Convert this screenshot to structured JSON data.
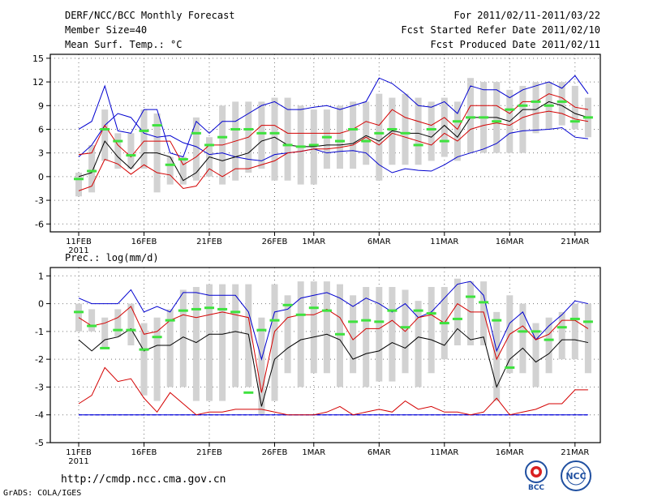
{
  "header": {
    "title": "DERF/NCC/BCC Monthly Forecast",
    "member_size": "Member Size=40",
    "variable": "Mean Surf. Temp.: °C",
    "forecast_period": "For 2011/02/11-2011/03/22",
    "refer_date": "Fcst Started Refer Date 2011/02/10",
    "produced_date": "Fcst Produced Date 2011/02/11"
  },
  "footer": {
    "url": "http://cmdp.ncc.cma.gov.cn",
    "credit": "GrADS: COLA/IGES",
    "logo_bcc": "BCC",
    "logo_ncc": "NCC"
  },
  "colors": {
    "box": "#d2d2d2",
    "median": "#3ee23e",
    "mean": "#000000",
    "sd": "#d40000",
    "minmax": "#0000d0",
    "floor": "#2222ff"
  },
  "chart_data": [
    {
      "type": "box",
      "title": "Mean Surf. Temp.: °C",
      "xlabel": "",
      "ylabel": "°C",
      "ylim": [
        -7,
        15.5
      ],
      "yticks": [
        15,
        12,
        9,
        6,
        3,
        0,
        -3,
        -6
      ],
      "x_start_label_year": "2011",
      "xticks": [
        {
          "day": 0,
          "label": "11FEB"
        },
        {
          "day": 5,
          "label": "16FEB"
        },
        {
          "day": 10,
          "label": "21FEB"
        },
        {
          "day": 15,
          "label": "26FEB"
        },
        {
          "day": 18,
          "label": "1MAR"
        },
        {
          "day": 23,
          "label": "6MAR"
        },
        {
          "day": 28,
          "label": "11MAR"
        },
        {
          "day": 33,
          "label": "16MAR"
        },
        {
          "day": 38,
          "label": "21MAR"
        }
      ],
      "grid": true,
      "series": [
        {
          "name": "max",
          "values": [
            2.5,
            4.0,
            6.5,
            8.0,
            7.5,
            5.5,
            5.0,
            5.2,
            4.3,
            3.8,
            2.8,
            3.0,
            2.5,
            2.2,
            2.0,
            2.8,
            3.0,
            3.2,
            3.5,
            3.0,
            3.2,
            3.3,
            3.0,
            1.5,
            0.5,
            1.0,
            0.8,
            0.7,
            1.5,
            2.5,
            3.0,
            3.5,
            4.2,
            5.5,
            5.8,
            5.9,
            6.0,
            6.2,
            5.0,
            4.8
          ]
        },
        {
          "name": "minus_sd",
          "values": [
            -1.8,
            -1.2,
            2.2,
            1.6,
            0.3,
            1.5,
            0.5,
            0.2,
            -1.5,
            -1.2,
            1.0,
            0.0,
            1.0,
            1.0,
            1.5,
            2.0,
            3.0,
            3.2,
            3.5,
            3.5,
            3.7,
            4.0,
            5.0,
            4.0,
            5.5,
            5.0,
            4.5,
            4.0,
            5.5,
            4.5,
            6.0,
            6.5,
            6.8,
            6.5,
            7.5,
            8.0,
            8.3,
            8.0,
            7.3,
            7.0
          ]
        },
        {
          "name": "mean",
          "values": [
            0.0,
            0.5,
            4.5,
            2.5,
            1.0,
            3.0,
            3.0,
            2.5,
            -0.5,
            0.5,
            2.5,
            2.0,
            2.5,
            3.0,
            4.5,
            5.0,
            4.0,
            3.8,
            3.8,
            4.0,
            4.0,
            4.2,
            5.2,
            4.5,
            5.8,
            5.5,
            5.5,
            5.0,
            6.5,
            5.0,
            7.5,
            7.5,
            7.5,
            7.0,
            8.5,
            8.5,
            9.5,
            9.0,
            8.0,
            7.5
          ]
        },
        {
          "name": "plus_sd",
          "values": [
            2.8,
            3.0,
            6.5,
            4.0,
            2.5,
            4.5,
            4.5,
            4.5,
            1.5,
            2.5,
            4.0,
            4.0,
            4.5,
            5.0,
            6.5,
            6.5,
            5.5,
            5.5,
            5.5,
            5.5,
            5.5,
            6.0,
            7.0,
            6.5,
            8.5,
            7.5,
            7.0,
            6.5,
            7.5,
            6.0,
            9.0,
            9.0,
            9.0,
            8.0,
            9.5,
            9.5,
            10.5,
            10.0,
            8.8,
            8.5
          ]
        },
        {
          "name": "min",
          "values": [
            6.0,
            7.0,
            11.5,
            5.8,
            5.5,
            8.5,
            8.5,
            3.0,
            2.5,
            7.0,
            5.5,
            7.0,
            7.0,
            8.0,
            9.0,
            9.5,
            8.5,
            8.5,
            8.8,
            9.0,
            8.5,
            9.0,
            9.5,
            12.5,
            11.8,
            10.5,
            9.0,
            8.8,
            9.5,
            8.0,
            11.5,
            11.0,
            11.0,
            10.0,
            11.0,
            11.5,
            12.0,
            11.2,
            12.8,
            10.5
          ]
        },
        {
          "name": "box_low",
          "values": [
            -2.5,
            -2.0,
            2.0,
            1.0,
            1.0,
            1.0,
            -2.0,
            -1.0,
            -1.0,
            -0.5,
            0.0,
            -1.0,
            -0.5,
            0.5,
            1.0,
            -0.5,
            -0.5,
            -1.0,
            -1.0,
            1.0,
            1.0,
            1.0,
            1.5,
            -0.5,
            1.5,
            1.5,
            1.5,
            2.0,
            2.5,
            2.0,
            3.0,
            3.0,
            3.0,
            3.0,
            3.0,
            5.5,
            6.0,
            6.5,
            6.0,
            5.0
          ]
        },
        {
          "name": "box_high",
          "values": [
            0.5,
            4.0,
            8.5,
            5.5,
            5.5,
            8.5,
            8.0,
            2.5,
            2.5,
            7.5,
            5.0,
            9.0,
            9.5,
            9.5,
            9.5,
            10.0,
            10.0,
            9.0,
            8.5,
            8.5,
            9.0,
            9.5,
            9.5,
            10.5,
            10.0,
            10.5,
            10.0,
            9.5,
            10.0,
            9.5,
            12.5,
            12.0,
            12.0,
            11.0,
            11.5,
            12.0,
            12.0,
            12.0,
            11.5,
            10.0
          ]
        },
        {
          "name": "median",
          "values": [
            -0.3,
            0.7,
            6.0,
            4.5,
            2.7,
            5.8,
            6.5,
            1.5,
            2.2,
            5.5,
            4.0,
            5.0,
            6.0,
            6.0,
            5.5,
            5.5,
            4.0,
            3.8,
            4.0,
            5.0,
            4.5,
            6.0,
            4.5,
            5.5,
            6.0,
            5.5,
            4.0,
            6.0,
            4.5,
            7.0,
            7.5,
            7.5,
            7.0,
            8.5,
            9.0,
            9.5,
            9.0,
            9.5,
            7.0,
            7.5
          ]
        }
      ]
    },
    {
      "type": "box",
      "title": "Prec.: log(mm/d)",
      "xlabel": "",
      "ylabel": "log(mm/d)",
      "ylim": [
        -5,
        1.3
      ],
      "yticks": [
        1,
        0,
        -1,
        -2,
        -3,
        -4,
        -5
      ],
      "x_start_label_year": "2011",
      "xticks": [
        {
          "day": 0,
          "label": "11FEB"
        },
        {
          "day": 5,
          "label": "16FEB"
        },
        {
          "day": 10,
          "label": "21FEB"
        },
        {
          "day": 15,
          "label": "26FEB"
        },
        {
          "day": 18,
          "label": "1MAR"
        },
        {
          "day": 23,
          "label": "6MAR"
        },
        {
          "day": 28,
          "label": "11MAR"
        },
        {
          "day": 33,
          "label": "16MAR"
        },
        {
          "day": 38,
          "label": "21MAR"
        }
      ],
      "grid": true,
      "floor_value": -4,
      "series": [
        {
          "name": "max",
          "values": [
            0.2,
            0.0,
            0.0,
            0.0,
            0.5,
            -0.3,
            -0.1,
            -0.3,
            0.4,
            0.4,
            0.3,
            0.3,
            0.3,
            -0.3,
            -2.0,
            -0.3,
            -0.2,
            0.2,
            0.3,
            0.4,
            0.2,
            -0.1,
            0.2,
            0.0,
            -0.3,
            0.0,
            -0.5,
            -0.3,
            0.2,
            0.7,
            0.8,
            0.3,
            -1.7,
            -0.7,
            -0.3,
            -1.3,
            -0.8,
            -0.4,
            0.1,
            0.0
          ]
        },
        {
          "name": "plus_sd",
          "values": [
            -0.5,
            -0.8,
            -0.7,
            -0.5,
            -0.1,
            -1.1,
            -1.0,
            -0.6,
            -0.4,
            -0.5,
            -0.4,
            -0.3,
            -0.4,
            -0.5,
            -3.2,
            -1.0,
            -0.5,
            -0.4,
            -0.4,
            -0.2,
            -0.5,
            -1.3,
            -0.9,
            -0.9,
            -0.6,
            -1.0,
            -0.5,
            -0.4,
            -0.7,
            0.0,
            -0.3,
            -0.3,
            -2.0,
            -1.1,
            -0.8,
            -1.3,
            -1.1,
            -0.6,
            -0.6,
            -0.9
          ]
        },
        {
          "name": "mean",
          "values": [
            -1.3,
            -1.7,
            -1.3,
            -1.2,
            -0.9,
            -1.7,
            -1.5,
            -1.5,
            -1.2,
            -1.4,
            -1.1,
            -1.1,
            -1.0,
            -1.1,
            -3.7,
            -2.0,
            -1.6,
            -1.3,
            -1.2,
            -1.1,
            -1.3,
            -2.0,
            -1.8,
            -1.7,
            -1.4,
            -1.6,
            -1.2,
            -1.3,
            -1.5,
            -0.9,
            -1.3,
            -1.2,
            -3.0,
            -2.0,
            -1.6,
            -2.1,
            -1.8,
            -1.3,
            -1.3,
            -1.4
          ]
        },
        {
          "name": "minus_sd",
          "values": [
            -3.6,
            -3.3,
            -2.3,
            -2.8,
            -2.7,
            -3.4,
            -3.9,
            -3.2,
            -3.6,
            -4.0,
            -3.9,
            -3.9,
            -3.8,
            -3.8,
            -3.8,
            -3.9,
            -4.0,
            -4.0,
            -4.0,
            -3.9,
            -3.7,
            -4.0,
            -3.9,
            -3.8,
            -3.9,
            -3.5,
            -3.8,
            -3.7,
            -3.9,
            -3.9,
            -4.0,
            -3.9,
            -3.4,
            -4.0,
            -3.9,
            -3.8,
            -3.6,
            -3.6,
            -3.1,
            -3.1
          ]
        },
        {
          "name": "min",
          "values": [
            -4,
            -4,
            -4,
            -4,
            -4,
            -4,
            -4,
            -4,
            -4,
            -4,
            -4,
            -4,
            -4,
            -4,
            -4,
            -4,
            -4,
            -4,
            -4,
            -4,
            -4,
            -4,
            -4,
            -4,
            -4,
            -4,
            -4,
            -4,
            -4,
            -4,
            -4,
            -4,
            -4,
            -4,
            -4,
            -4,
            -4,
            -4,
            -4,
            -4
          ]
        },
        {
          "name": "box_low",
          "values": [
            -1.0,
            -1.0,
            -1.6,
            -1.2,
            -1.5,
            -3.3,
            -3.5,
            -3.0,
            -3.0,
            -3.5,
            -3.5,
            -3.5,
            -3.0,
            -3.0,
            -4.0,
            -3.5,
            -2.5,
            -3.0,
            -2.5,
            -2.5,
            -3.0,
            -2.5,
            -3.0,
            -2.8,
            -2.8,
            -2.5,
            -3.0,
            -2.5,
            -2.0,
            -1.5,
            -1.5,
            -1.5,
            -3.5,
            -2.5,
            -2.5,
            -3.0,
            -2.5,
            -2.0,
            -2.0,
            -2.5
          ]
        },
        {
          "name": "box_high",
          "values": [
            0.0,
            -0.2,
            -0.5,
            -0.2,
            0.0,
            -0.7,
            -0.5,
            -0.2,
            0.5,
            0.6,
            0.7,
            0.7,
            0.7,
            0.7,
            -0.5,
            0.7,
            0.3,
            0.8,
            0.8,
            0.8,
            0.7,
            0.3,
            0.6,
            0.6,
            0.6,
            0.5,
            0.1,
            0.6,
            0.6,
            0.9,
            0.8,
            0.8,
            -0.3,
            0.3,
            0.0,
            -0.7,
            -0.5,
            -0.3,
            0.0,
            0.0
          ]
        },
        {
          "name": "median",
          "values": [
            -0.3,
            -0.8,
            -1.6,
            -0.95,
            -0.95,
            -1.65,
            -1.2,
            -0.6,
            -0.25,
            -0.2,
            -0.15,
            -0.2,
            -0.3,
            -3.2,
            -0.95,
            -0.6,
            -0.05,
            -0.4,
            -0.15,
            -0.25,
            -1.1,
            -0.65,
            -0.6,
            -0.65,
            -0.25,
            -0.85,
            -0.25,
            -0.35,
            -0.7,
            -0.55,
            0.25,
            0.05,
            -0.6,
            -2.3,
            -1.0,
            -1.0,
            -1.3,
            -0.85,
            -0.55,
            -0.65
          ]
        }
      ]
    }
  ]
}
